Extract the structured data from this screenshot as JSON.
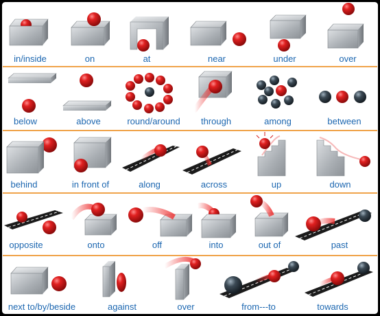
{
  "rows": [
    {
      "items": [
        {
          "label": "in/inside",
          "icon": "ball-in-box-icon"
        },
        {
          "label": "on",
          "icon": "ball-on-box-icon"
        },
        {
          "label": "at",
          "icon": "ball-at-arch-icon"
        },
        {
          "label": "near",
          "icon": "ball-near-box-icon"
        },
        {
          "label": "under",
          "icon": "ball-under-box-icon"
        },
        {
          "label": "over",
          "icon": "ball-over-box-icon"
        }
      ]
    },
    {
      "items": [
        {
          "label": "below",
          "icon": "ball-below-slab-icon"
        },
        {
          "label": "above",
          "icon": "ball-above-slab-icon"
        },
        {
          "label": "round/around",
          "icon": "balls-around-ball-icon"
        },
        {
          "label": "through",
          "icon": "ball-through-box-icon"
        },
        {
          "label": "among",
          "icon": "ball-among-balls-icon"
        },
        {
          "label": "between",
          "icon": "ball-between-balls-icon"
        }
      ]
    },
    {
      "items": [
        {
          "label": "behind",
          "icon": "ball-behind-box-icon"
        },
        {
          "label": "in front of",
          "icon": "ball-in-front-of-box-icon"
        },
        {
          "label": "along",
          "icon": "ball-along-road-icon"
        },
        {
          "label": "across",
          "icon": "ball-across-road-icon"
        },
        {
          "label": "up",
          "icon": "ball-up-stairs-icon"
        },
        {
          "label": "down",
          "icon": "ball-down-stairs-icon"
        }
      ]
    },
    {
      "items": [
        {
          "label": "opposite",
          "icon": "balls-opposite-road-icon"
        },
        {
          "label": "onto",
          "icon": "ball-onto-box-icon"
        },
        {
          "label": "off",
          "icon": "ball-off-box-icon"
        },
        {
          "label": "into",
          "icon": "ball-into-box-icon"
        },
        {
          "label": "out of",
          "icon": "ball-out-of-box-icon"
        },
        {
          "label": "past",
          "icon": "ball-past-ball-icon"
        }
      ]
    },
    {
      "items": [
        {
          "label": "next to/by/beside",
          "icon": "ball-next-to-box-icon"
        },
        {
          "label": "against",
          "icon": "ball-against-wall-icon"
        },
        {
          "label": "over",
          "icon": "ball-over-wall-icon"
        },
        {
          "label": "from---to",
          "icon": "ball-from-to-icon"
        },
        {
          "label": "towards",
          "icon": "ball-towards-ball-icon"
        }
      ]
    }
  ],
  "colors": {
    "background": "#ffffff",
    "border": "#000000",
    "divider": "#f0a34a",
    "label": "#1b66b0",
    "red_ball": "#d41a1a",
    "dark_ball": "#2e3a44",
    "box": "#b8bcc0",
    "road": "#1b1b1b"
  }
}
